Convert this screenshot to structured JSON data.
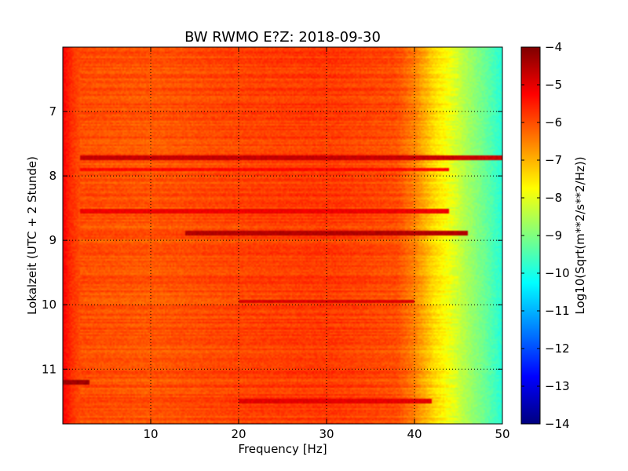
{
  "chart_data": {
    "type": "heatmap",
    "title": "BW RWMO E?Z: 2018-09-30",
    "xlabel": "Frequency [Hz]",
    "ylabel": "Lokalzeit (UTC + 2 Stunde)",
    "xlim": [
      0,
      50
    ],
    "ylim": [
      11.85,
      6.0
    ],
    "x_ticks": [
      10,
      20,
      30,
      40,
      50
    ],
    "y_ticks": [
      7,
      8,
      9,
      10,
      11
    ],
    "grid": true,
    "colormap": "jet",
    "colorbar": {
      "label": "Log10(Sqrt(m**2/s**2/Hz))",
      "range": [
        -14,
        -4
      ],
      "ticks": [
        -4,
        -5,
        -6,
        -7,
        -8,
        -9,
        -10,
        -11,
        -12,
        -13,
        -14
      ]
    },
    "profile_freq_hz": [
      0,
      1,
      2,
      10,
      20,
      30,
      38,
      40,
      42,
      44,
      46,
      48,
      50
    ],
    "profile_level": [
      -5.2,
      -5.7,
      -6.0,
      -6.1,
      -5.9,
      -5.8,
      -6.0,
      -6.5,
      -7.3,
      -7.9,
      -8.6,
      -9.2,
      -9.9
    ],
    "loud_bands": [
      {
        "time": 7.71,
        "level": -4.7,
        "f_from": 2,
        "f_to": 50
      },
      {
        "time": 7.9,
        "level": -5.3,
        "f_from": 2,
        "f_to": 44
      },
      {
        "time": 8.55,
        "level": -5.1,
        "f_from": 2,
        "f_to": 44
      },
      {
        "time": 8.88,
        "level": -4.5,
        "f_from": 14,
        "f_to": 46
      },
      {
        "time": 9.95,
        "level": -4.9,
        "f_from": 20,
        "f_to": 40
      },
      {
        "time": 11.2,
        "level": -4.3,
        "f_from": 0,
        "f_to": 3
      },
      {
        "time": 11.5,
        "level": -5.0,
        "f_from": 20,
        "f_to": 42
      }
    ]
  }
}
